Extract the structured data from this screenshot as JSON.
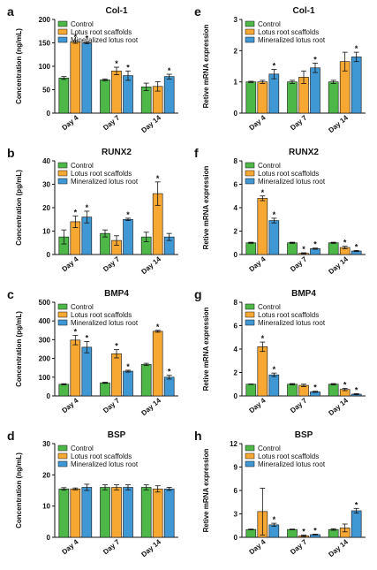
{
  "figure": {
    "legend_labels": [
      "Control",
      "Lotus root scaffolds",
      "Mineralized lotus root"
    ],
    "colors": [
      "#4db848",
      "#f7a833",
      "#3f97d4"
    ]
  },
  "chart_data": [
    {
      "panel": "a",
      "type": "bar",
      "title": "Col-1",
      "ylabel": "Concentration (ng/mL)",
      "ylim": [
        0,
        200
      ],
      "yticks": [
        0,
        50,
        100,
        150,
        200
      ],
      "categories": [
        "Day 4",
        "Day 7",
        "Day 14"
      ],
      "legend": "top-left",
      "grid": false,
      "series": [
        {
          "name": "Control",
          "values": [
            75,
            71,
            56
          ],
          "errors": [
            3,
            2,
            8
          ],
          "sig": [
            false,
            false,
            false
          ]
        },
        {
          "name": "Lotus root scaffolds",
          "values": [
            152,
            90,
            57
          ],
          "errors": [
            3,
            8,
            10
          ],
          "sig": [
            true,
            true,
            false
          ]
        },
        {
          "name": "Mineralized lotus root",
          "values": [
            150,
            80,
            78
          ],
          "errors": [
            2,
            10,
            5
          ],
          "sig": [
            true,
            true,
            true
          ]
        }
      ]
    },
    {
      "panel": "b",
      "type": "bar",
      "title": "RUNX2",
      "ylabel": "Concentration (pg/mL)",
      "ylim": [
        0,
        40
      ],
      "yticks": [
        0,
        10,
        20,
        30,
        40
      ],
      "categories": [
        "Day 4",
        "Day 7",
        "Day 14"
      ],
      "legend": "top-left",
      "grid": false,
      "series": [
        {
          "name": "Control",
          "values": [
            7.5,
            9,
            7.5
          ],
          "errors": [
            3,
            1.5,
            2
          ],
          "sig": [
            false,
            false,
            false
          ]
        },
        {
          "name": "Lotus root scaffolds",
          "values": [
            14,
            6,
            26
          ],
          "errors": [
            2.5,
            2,
            5
          ],
          "sig": [
            true,
            false,
            true
          ]
        },
        {
          "name": "Mineralized lotus root",
          "values": [
            16,
            15,
            7.5
          ],
          "errors": [
            2.5,
            0.5,
            1.5
          ],
          "sig": [
            true,
            true,
            false
          ]
        }
      ]
    },
    {
      "panel": "c",
      "type": "bar",
      "title": "BMP4",
      "ylabel": "Concentration (pg/mL)",
      "ylim": [
        0,
        500
      ],
      "yticks": [
        0,
        100,
        200,
        300,
        400,
        500
      ],
      "categories": [
        "Day 4",
        "Day 7",
        "Day 14"
      ],
      "legend": "top-left",
      "grid": false,
      "series": [
        {
          "name": "Control",
          "values": [
            62,
            70,
            168
          ],
          "errors": [
            3,
            3,
            6
          ],
          "sig": [
            false,
            false,
            false
          ]
        },
        {
          "name": "Lotus root scaffolds",
          "values": [
            298,
            225,
            345
          ],
          "errors": [
            25,
            22,
            5
          ],
          "sig": [
            true,
            true,
            true
          ]
        },
        {
          "name": "Mineralized lotus root",
          "values": [
            260,
            132,
            100
          ],
          "errors": [
            30,
            5,
            10
          ],
          "sig": [
            true,
            true,
            true
          ]
        }
      ]
    },
    {
      "panel": "d",
      "type": "bar",
      "title": "BSP",
      "ylabel": "Concentration (ng/mL)",
      "ylim": [
        0,
        30
      ],
      "yticks": [
        0,
        10,
        20,
        30
      ],
      "categories": [
        "Day 4",
        "Day 7",
        "Day 14"
      ],
      "legend": "top-left",
      "grid": false,
      "series": [
        {
          "name": "Control",
          "values": [
            15.5,
            16,
            16
          ],
          "errors": [
            0.4,
            0.8,
            0.8
          ],
          "sig": [
            false,
            false,
            false
          ]
        },
        {
          "name": "Lotus root scaffolds",
          "values": [
            15.5,
            16,
            15.5
          ],
          "errors": [
            0.3,
            0.8,
            1
          ],
          "sig": [
            false,
            false,
            false
          ]
        },
        {
          "name": "Mineralized lotus root",
          "values": [
            16,
            16,
            15.5
          ],
          "errors": [
            1,
            0.8,
            0.5
          ],
          "sig": [
            false,
            false,
            false
          ]
        }
      ]
    },
    {
      "panel": "e",
      "type": "bar",
      "title": "Col-1",
      "ylabel": "Retive mRNA expression",
      "ylim": [
        0,
        3
      ],
      "yticks": [
        0,
        1,
        2,
        3
      ],
      "categories": [
        "Day 4",
        "Day 7",
        "Day 14"
      ],
      "legend": "top-left",
      "grid": false,
      "series": [
        {
          "name": "Control",
          "values": [
            1.0,
            1.0,
            1.0
          ],
          "errors": [
            0.02,
            0.05,
            0.05
          ],
          "sig": [
            false,
            false,
            false
          ]
        },
        {
          "name": "Lotus root scaffolds",
          "values": [
            1.0,
            1.15,
            1.65
          ],
          "errors": [
            0.05,
            0.2,
            0.3
          ],
          "sig": [
            false,
            false,
            false
          ]
        },
        {
          "name": "Mineralized lotus root",
          "values": [
            1.25,
            1.45,
            1.8
          ],
          "errors": [
            0.15,
            0.15,
            0.15
          ],
          "sig": [
            true,
            true,
            true
          ]
        }
      ]
    },
    {
      "panel": "f",
      "type": "bar",
      "title": "RUNX2",
      "ylabel": "Retive mRNA expression",
      "ylim": [
        0,
        8
      ],
      "yticks": [
        0,
        2,
        4,
        6,
        8
      ],
      "categories": [
        "Day 4",
        "Day 7",
        "Day 14"
      ],
      "legend": "top-left",
      "grid": false,
      "series": [
        {
          "name": "Control",
          "values": [
            1.0,
            1.0,
            1.0
          ],
          "errors": [
            0.05,
            0.05,
            0.05
          ],
          "sig": [
            false,
            false,
            false
          ]
        },
        {
          "name": "Lotus root scaffolds",
          "values": [
            4.8,
            0.1,
            0.6
          ],
          "errors": [
            0.2,
            0.05,
            0.1
          ],
          "sig": [
            true,
            true,
            true
          ]
        },
        {
          "name": "Mineralized lotus root",
          "values": [
            2.9,
            0.5,
            0.3
          ],
          "errors": [
            0.2,
            0.05,
            0.05
          ],
          "sig": [
            true,
            true,
            true
          ]
        }
      ]
    },
    {
      "panel": "g",
      "type": "bar",
      "title": "BMP4",
      "ylabel": "Retive mRNA expression",
      "ylim": [
        0,
        8
      ],
      "yticks": [
        0,
        2,
        4,
        6,
        8
      ],
      "categories": [
        "Day 4",
        "Day 7",
        "Day 14"
      ],
      "legend": "top-left",
      "grid": false,
      "series": [
        {
          "name": "Control",
          "values": [
            1.0,
            1.0,
            1.0
          ],
          "errors": [
            0.02,
            0.05,
            0.05
          ],
          "sig": [
            false,
            false,
            false
          ]
        },
        {
          "name": "Lotus root scaffolds",
          "values": [
            4.2,
            0.9,
            0.55
          ],
          "errors": [
            0.4,
            0.1,
            0.1
          ],
          "sig": [
            true,
            false,
            true
          ]
        },
        {
          "name": "Mineralized lotus root",
          "values": [
            1.8,
            0.35,
            0.15
          ],
          "errors": [
            0.15,
            0.05,
            0.05
          ],
          "sig": [
            true,
            true,
            true
          ]
        }
      ]
    },
    {
      "panel": "h",
      "type": "bar",
      "title": "BSP",
      "ylabel": "Retive mRNA expression",
      "ylim": [
        0,
        12
      ],
      "yticks": [
        0,
        3,
        6,
        9,
        12
      ],
      "categories": [
        "Day 4",
        "Day 7",
        "Day 14"
      ],
      "legend": "top-left",
      "grid": false,
      "series": [
        {
          "name": "Control",
          "values": [
            1.0,
            1.0,
            1.0
          ],
          "errors": [
            0.05,
            0.05,
            0.1
          ],
          "sig": [
            false,
            false,
            false
          ]
        },
        {
          "name": "Lotus root scaffolds",
          "values": [
            3.3,
            0.2,
            1.2
          ],
          "errors": [
            3.0,
            0.1,
            0.5
          ],
          "sig": [
            false,
            true,
            false
          ]
        },
        {
          "name": "Mineralized lotus root",
          "values": [
            1.6,
            0.35,
            3.4
          ],
          "errors": [
            0.2,
            0.05,
            0.3
          ],
          "sig": [
            true,
            true,
            true
          ]
        }
      ]
    }
  ]
}
